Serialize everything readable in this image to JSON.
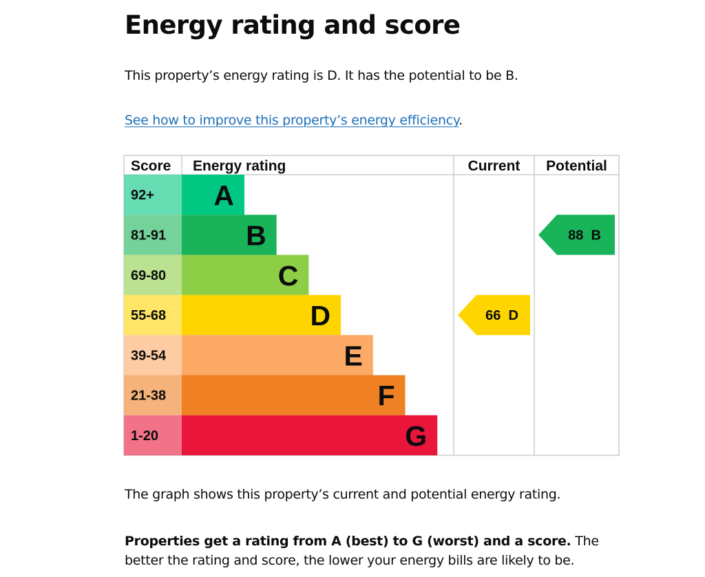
{
  "heading": "Energy rating and score",
  "intro": "This property’s energy rating is D. It has the potential to be B.",
  "improve_link": {
    "text": "See how to improve this property’s energy efficiency",
    "trailing": "."
  },
  "chart_data": {
    "type": "table",
    "columns": [
      "Score",
      "Energy rating",
      "Current",
      "Potential"
    ],
    "bands": [
      {
        "score": "92+",
        "letter": "A",
        "color": "#00c781",
        "score_bg": "#66dcb3"
      },
      {
        "score": "81-91",
        "letter": "B",
        "color": "#19b459",
        "score_bg": "#75d29b"
      },
      {
        "score": "69-80",
        "letter": "C",
        "color": "#8dce46",
        "score_bg": "#bbe290"
      },
      {
        "score": "55-68",
        "letter": "D",
        "color": "#ffd500",
        "score_bg": "#ffe666"
      },
      {
        "score": "39-54",
        "letter": "E",
        "color": "#fcaa65",
        "score_bg": "#fdcca3"
      },
      {
        "score": "21-38",
        "letter": "F",
        "color": "#ef8023",
        "score_bg": "#f5b37b"
      },
      {
        "score": "1-20",
        "letter": "G",
        "color": "#e9153b",
        "score_bg": "#f27389"
      }
    ],
    "current": {
      "score": 66,
      "band": "D",
      "label": "66  D"
    },
    "potential": {
      "score": 88,
      "band": "B",
      "label": "88  B"
    }
  },
  "graph_note": "The graph shows this property’s current and potential energy rating.",
  "rating_info": {
    "bold": "Properties get a rating from A (best) to G (worst) and a score.",
    "rest": " The better the rating and score, the lower your energy bills are likely to be."
  }
}
